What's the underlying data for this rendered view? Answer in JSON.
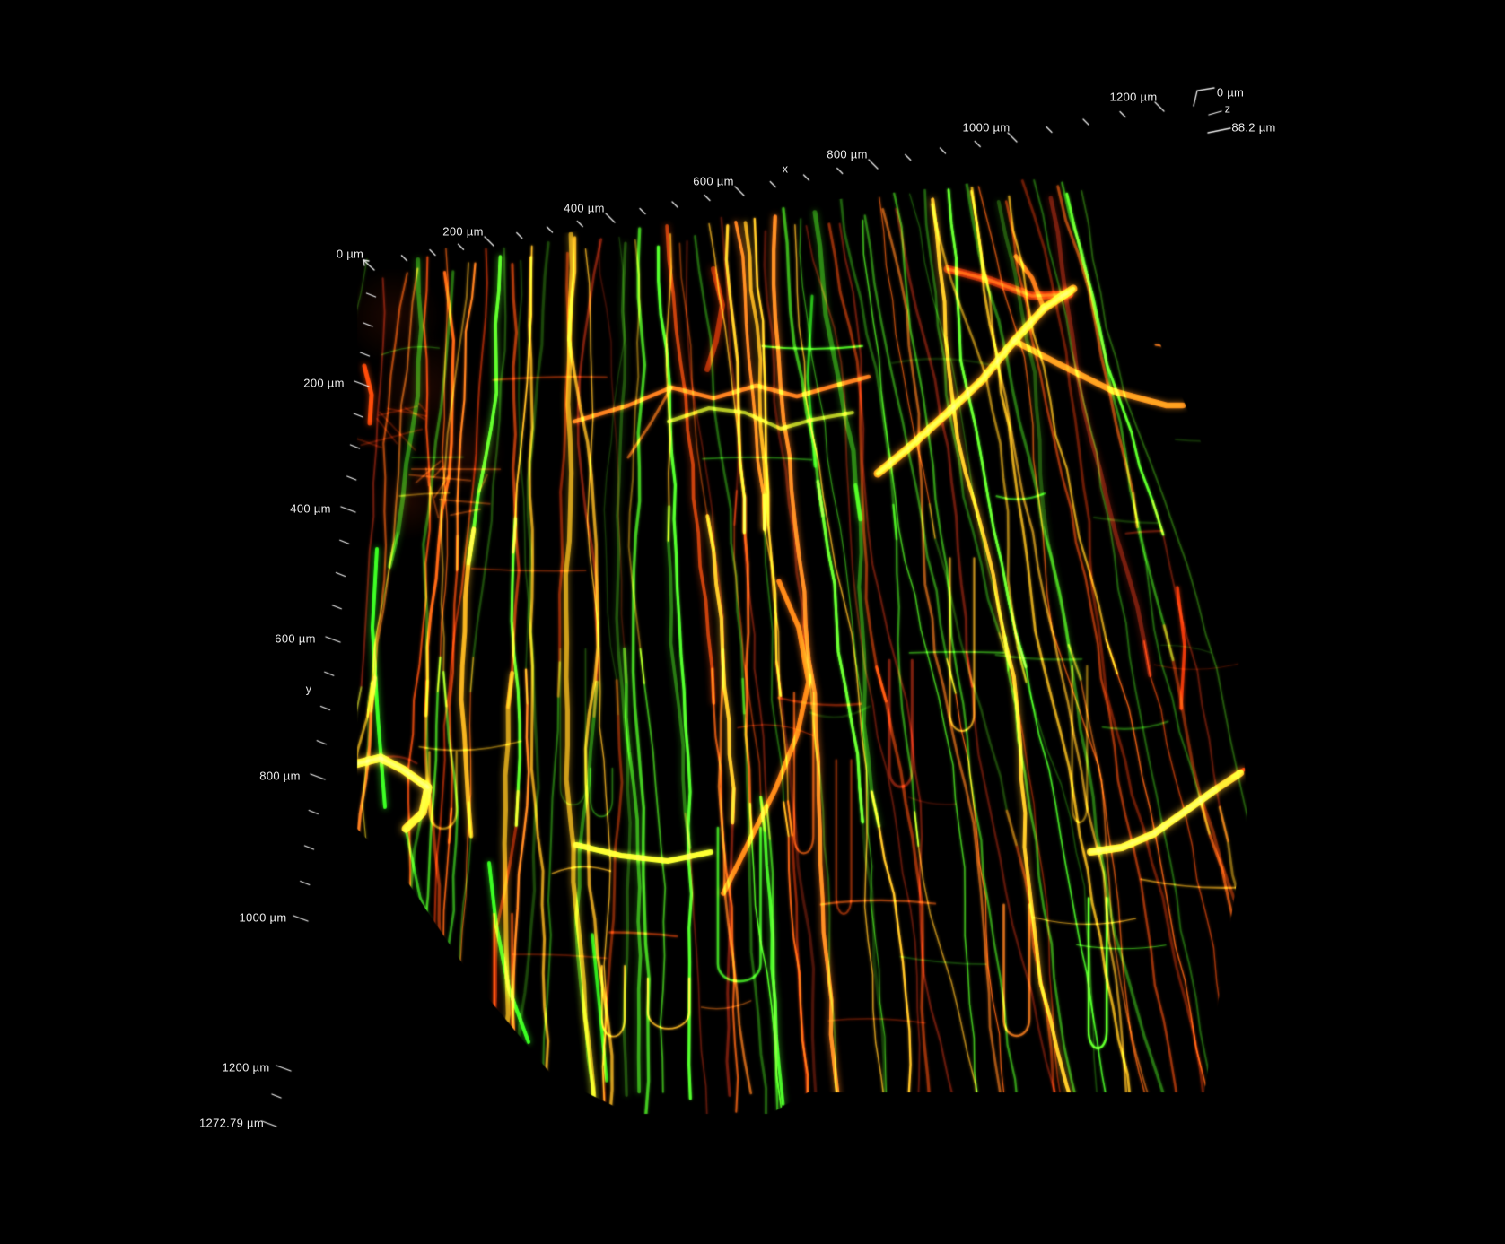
{
  "figure": {
    "type": "3d-volume-render",
    "description": "Two-channel fluorescence microscopy 3D volume rendering of capillary vessels (red and green channels) on a black background, shown in a rotated perspective box with micrometer axes",
    "background_color": "#000000",
    "axis_color": "#ececec",
    "channel_colors": {
      "red": "#b44a10",
      "green": "#2fae1c",
      "overlap_yellow": "#d2a128"
    }
  },
  "axes": {
    "x": {
      "title": "x",
      "unit": "µm",
      "tick_labels": [
        "0 µm",
        "200 µm",
        "400 µm",
        "600 µm",
        "800 µm",
        "1000 µm",
        "1200 µm"
      ]
    },
    "y": {
      "title": "y",
      "unit": "µm",
      "tick_labels": [
        "200 µm",
        "400 µm",
        "600 µm",
        "800 µm",
        "1000 µm",
        "1200 µm",
        "1272.79 µm"
      ]
    },
    "z": {
      "title": "z",
      "unit": "µm",
      "tick_labels": [
        "0 µm",
        "88.2 µm"
      ]
    }
  }
}
